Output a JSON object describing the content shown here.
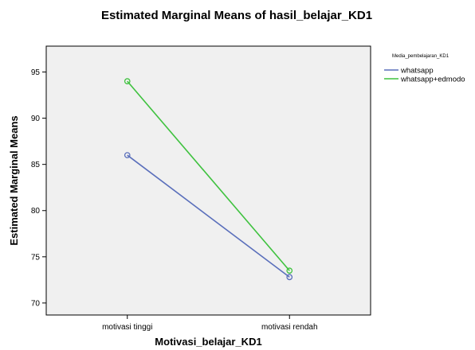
{
  "chart_data": {
    "type": "line",
    "title": "Estimated Marginal Means of hasil_belajar_KD1",
    "xlabel": "Motivasi_belajar_KD1",
    "ylabel": "Estimated Marginal Means",
    "categories": [
      "motivasi tinggi",
      "motivasi rendah"
    ],
    "ylim": [
      68.7,
      97.8
    ],
    "yticks": [
      70,
      75,
      80,
      85,
      90,
      95
    ],
    "legend_title": "Media_pembelajaran_KD1",
    "legend_position": "right",
    "grid": false,
    "plot_background": "#f0f0f0",
    "series": [
      {
        "name": "whatsapp",
        "color": "#5a6fbb",
        "values": [
          86.0,
          72.8
        ]
      },
      {
        "name": "whatsapp+edmodo",
        "color": "#3fc23f",
        "values": [
          94.0,
          73.5
        ]
      }
    ]
  }
}
